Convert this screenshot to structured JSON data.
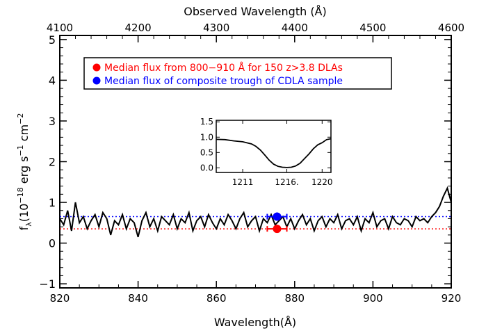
{
  "chart_data": {
    "type": "line",
    "xlabel": "Wavelength(Å)",
    "ylabel_parts": [
      "f",
      "λ",
      "(10",
      "−18",
      " erg s",
      "−1",
      " cm",
      "−2"
    ],
    "top_xlabel": "Observed Wavelength (Å)",
    "xlim": [
      820,
      920
    ],
    "ylim": [
      -1.1,
      5.1
    ],
    "xticks": [
      820,
      840,
      860,
      880,
      900,
      920
    ],
    "xtick_labels": [
      "820",
      "840",
      "860",
      "880",
      "900",
      "920"
    ],
    "yticks": [
      -1,
      0,
      1,
      2,
      3,
      4,
      5
    ],
    "ytick_labels": [
      "−1",
      "0",
      "1",
      "2",
      "3",
      "4",
      "5"
    ],
    "top_xlim": [
      4100,
      4600
    ],
    "top_xticks": [
      4100,
      4200,
      4300,
      4400,
      4500,
      4600
    ],
    "top_xtick_labels": [
      "4100",
      "4200",
      "4300",
      "4400",
      "4500",
      "4600"
    ],
    "legend_position": "top-left",
    "legend": [
      {
        "label": "Median flux from 800−910 Å for 150 z>3.8 DLAs",
        "color": "#ff0000"
      },
      {
        "label": "Median flux of composite trough of CDLA sample",
        "color": "#0000ff"
      }
    ],
    "hlines": [
      {
        "y": 0.35,
        "color": "#ff0000",
        "style": "dotted"
      },
      {
        "y": 0.65,
        "color": "#0000ff",
        "style": "dotted"
      }
    ],
    "points": [
      {
        "x": 875.5,
        "y": 0.35,
        "xerr": 2.5,
        "yerr": 0.08,
        "color": "#ff0000"
      },
      {
        "x": 875.5,
        "y": 0.65,
        "xerr": 2.5,
        "yerr": 0.1,
        "color": "#0000ff"
      }
    ],
    "series": [
      {
        "color": "#000000",
        "x": [
          820,
          821,
          822,
          823,
          824,
          825,
          826,
          827,
          828,
          829,
          830,
          831,
          832,
          833,
          834,
          835,
          836,
          837,
          838,
          839,
          840,
          841,
          842,
          843,
          844,
          845,
          846,
          847,
          848,
          849,
          850,
          851,
          852,
          853,
          854,
          855,
          856,
          857,
          858,
          859,
          860,
          861,
          862,
          863,
          864,
          865,
          866,
          867,
          868,
          869,
          870,
          871,
          872,
          873,
          874,
          875,
          876,
          877,
          878,
          879,
          880,
          881,
          882,
          883,
          884,
          885,
          886,
          887,
          888,
          889,
          890,
          891,
          892,
          893,
          894,
          895,
          896,
          897,
          898,
          899,
          900,
          901,
          902,
          903,
          904,
          905,
          906,
          907,
          908,
          909,
          910,
          911,
          912,
          913,
          914,
          915,
          916,
          917,
          918,
          919,
          920
        ],
        "y": [
          0.6,
          0.45,
          0.8,
          0.3,
          1.0,
          0.5,
          0.65,
          0.35,
          0.55,
          0.7,
          0.4,
          0.75,
          0.6,
          0.2,
          0.55,
          0.45,
          0.7,
          0.35,
          0.6,
          0.5,
          0.15,
          0.55,
          0.75,
          0.4,
          0.6,
          0.3,
          0.65,
          0.55,
          0.45,
          0.7,
          0.35,
          0.6,
          0.5,
          0.75,
          0.3,
          0.55,
          0.65,
          0.4,
          0.7,
          0.5,
          0.35,
          0.6,
          0.45,
          0.7,
          0.55,
          0.35,
          0.6,
          0.75,
          0.4,
          0.55,
          0.65,
          0.3,
          0.6,
          0.5,
          0.7,
          0.45,
          0.55,
          0.65,
          0.4,
          0.6,
          0.35,
          0.55,
          0.7,
          0.45,
          0.6,
          0.3,
          0.55,
          0.65,
          0.4,
          0.6,
          0.5,
          0.7,
          0.35,
          0.55,
          0.6,
          0.45,
          0.65,
          0.3,
          0.6,
          0.5,
          0.75,
          0.4,
          0.55,
          0.6,
          0.35,
          0.65,
          0.5,
          0.45,
          0.6,
          0.55,
          0.4,
          0.65,
          0.55,
          0.6,
          0.5,
          0.65,
          0.75,
          0.9,
          1.15,
          1.35,
          1.0
        ]
      }
    ],
    "inset": {
      "xlim": [
        1208,
        1221
      ],
      "ylim": [
        -0.15,
        1.55
      ],
      "xticks": [
        1211,
        1216,
        1220
      ],
      "xtick_labels": [
        "1211",
        "1216.",
        "1220"
      ],
      "yticks": [
        0.0,
        0.5,
        1.0,
        1.5
      ],
      "ytick_labels": [
        "0.0",
        "0.5",
        "1.0",
        "1.5"
      ],
      "series": {
        "x": [
          1208,
          1209,
          1210,
          1211,
          1212,
          1212.5,
          1213,
          1213.5,
          1214,
          1214.5,
          1215,
          1215.5,
          1216,
          1216.5,
          1217,
          1217.5,
          1218,
          1218.5,
          1219,
          1219.5,
          1220,
          1220.5,
          1221
        ],
        "y": [
          0.93,
          0.92,
          0.88,
          0.85,
          0.78,
          0.7,
          0.58,
          0.42,
          0.25,
          0.12,
          0.05,
          0.02,
          0.01,
          0.02,
          0.06,
          0.15,
          0.3,
          0.45,
          0.62,
          0.75,
          0.82,
          0.92,
          0.95
        ]
      }
    }
  }
}
